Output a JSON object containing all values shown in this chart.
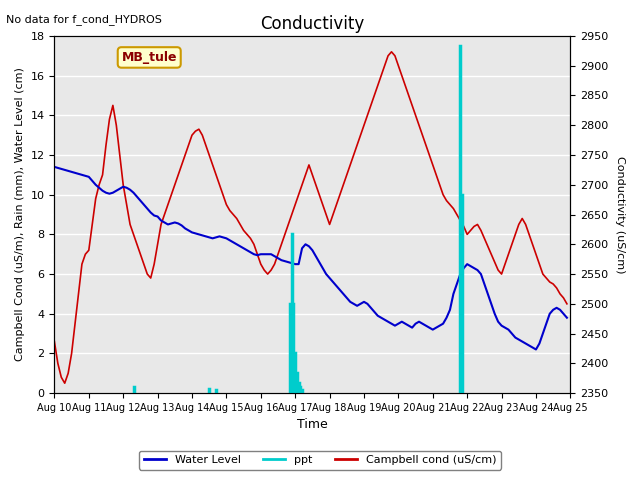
{
  "title": "Conductivity",
  "top_left_text": "No data for f_cond_HYDROS",
  "xlabel": "Time",
  "ylabel_left": "Campbell Cond (uS/m), Rain (mm), Water Level (cm)",
  "ylabel_right": "Conductivity (uS/cm)",
  "xlim": [
    0,
    15
  ],
  "ylim_left": [
    0,
    18
  ],
  "ylim_right": [
    2350,
    2950
  ],
  "bg_color": "#e8e8e8",
  "legend_box_label": "MB_tule",
  "legend_box_color": "#ffffcc",
  "legend_box_border": "#cc9900",
  "x_ticks": [
    0,
    1,
    2,
    3,
    4,
    5,
    6,
    7,
    8,
    9,
    10,
    11,
    12,
    13,
    14,
    15
  ],
  "x_tick_labels": [
    "Aug 10",
    "Aug 11",
    "Aug 12",
    "Aug 13",
    "Aug 14",
    "Aug 15",
    "Aug 16",
    "Aug 17",
    "Aug 18",
    "Aug 19",
    "Aug 20",
    "Aug 21",
    "Aug 22",
    "Aug 23",
    "Aug 24",
    "Aug 25"
  ],
  "water_level_color": "#0000cc",
  "ppt_color": "#00cccc",
  "campbell_color": "#cc0000",
  "water_level_x": [
    0,
    0.1,
    0.2,
    0.3,
    0.4,
    0.5,
    0.6,
    0.7,
    0.8,
    0.9,
    1.0,
    1.1,
    1.2,
    1.3,
    1.4,
    1.5,
    1.6,
    1.7,
    1.8,
    1.9,
    2.0,
    2.1,
    2.2,
    2.3,
    2.4,
    2.5,
    2.6,
    2.7,
    2.8,
    2.9,
    3.0,
    3.1,
    3.2,
    3.3,
    3.4,
    3.5,
    3.6,
    3.7,
    3.8,
    3.9,
    4.0,
    4.1,
    4.2,
    4.3,
    4.4,
    4.5,
    4.6,
    4.7,
    4.8,
    4.9,
    5.0,
    5.1,
    5.2,
    5.3,
    5.4,
    5.5,
    5.6,
    5.7,
    5.8,
    5.9,
    6.0,
    6.1,
    6.2,
    6.3,
    6.4,
    6.5,
    6.6,
    6.7,
    6.8,
    6.9,
    7.0,
    7.1,
    7.2,
    7.3,
    7.4,
    7.5,
    7.6,
    7.7,
    7.8,
    7.9,
    8.0,
    8.1,
    8.2,
    8.3,
    8.4,
    8.5,
    8.6,
    8.7,
    8.8,
    8.9,
    9.0,
    9.1,
    9.2,
    9.3,
    9.4,
    9.5,
    9.6,
    9.7,
    9.8,
    9.9,
    10.0,
    10.1,
    10.2,
    10.3,
    10.4,
    10.5,
    10.6,
    10.7,
    10.8,
    10.9,
    11.0,
    11.1,
    11.2,
    11.3,
    11.4,
    11.5,
    11.6,
    11.7,
    11.8,
    11.9,
    12.0,
    12.1,
    12.2,
    12.3,
    12.4,
    12.5,
    12.6,
    12.7,
    12.8,
    12.9,
    13.0,
    13.1,
    13.2,
    13.3,
    13.4,
    13.5,
    13.6,
    13.7,
    13.8,
    13.9,
    14.0,
    14.1,
    14.2,
    14.3,
    14.4,
    14.5,
    14.6,
    14.7,
    14.8,
    14.9
  ],
  "water_level_y": [
    11.4,
    11.35,
    11.3,
    11.25,
    11.2,
    11.15,
    11.1,
    11.05,
    11.0,
    10.95,
    10.9,
    10.7,
    10.5,
    10.35,
    10.2,
    10.1,
    10.05,
    10.1,
    10.2,
    10.3,
    10.4,
    10.35,
    10.25,
    10.1,
    9.9,
    9.7,
    9.5,
    9.3,
    9.1,
    8.95,
    8.9,
    8.7,
    8.6,
    8.5,
    8.55,
    8.6,
    8.55,
    8.45,
    8.3,
    8.2,
    8.1,
    8.05,
    8.0,
    7.95,
    7.9,
    7.85,
    7.8,
    7.85,
    7.9,
    7.85,
    7.8,
    7.7,
    7.6,
    7.5,
    7.4,
    7.3,
    7.2,
    7.1,
    7.0,
    6.95,
    7.0,
    7.0,
    7.0,
    7.0,
    6.9,
    6.8,
    6.7,
    6.65,
    6.6,
    6.55,
    6.5,
    6.5,
    7.3,
    7.5,
    7.4,
    7.2,
    6.9,
    6.6,
    6.3,
    6.0,
    5.8,
    5.6,
    5.4,
    5.2,
    5.0,
    4.8,
    4.6,
    4.5,
    4.4,
    4.5,
    4.6,
    4.5,
    4.3,
    4.1,
    3.9,
    3.8,
    3.7,
    3.6,
    3.5,
    3.4,
    3.5,
    3.6,
    3.5,
    3.4,
    3.3,
    3.5,
    3.6,
    3.5,
    3.4,
    3.3,
    3.2,
    3.3,
    3.4,
    3.5,
    3.8,
    4.2,
    5.0,
    5.5,
    6.0,
    6.3,
    6.5,
    6.4,
    6.3,
    6.2,
    6.0,
    5.5,
    5.0,
    4.5,
    4.0,
    3.6,
    3.4,
    3.3,
    3.2,
    3.0,
    2.8,
    2.7,
    2.6,
    2.5,
    2.4,
    2.3,
    2.2,
    2.5,
    3.0,
    3.5,
    4.0,
    4.2,
    4.3,
    4.2,
    4.0,
    3.8
  ],
  "ppt_x": [
    2.3,
    4.5,
    4.7,
    6.85,
    6.9,
    6.95,
    7.0,
    7.05,
    7.1,
    7.15,
    7.2,
    11.8,
    11.85
  ],
  "ppt_y": [
    0.3,
    0.2,
    0.15,
    4.5,
    8.0,
    4.5,
    2.0,
    1.0,
    0.5,
    0.3,
    0.15,
    17.5,
    10.0
  ],
  "campbell_x": [
    0,
    0.1,
    0.2,
    0.3,
    0.4,
    0.5,
    0.6,
    0.7,
    0.8,
    0.9,
    1.0,
    1.1,
    1.2,
    1.3,
    1.4,
    1.5,
    1.6,
    1.7,
    1.8,
    1.9,
    2.0,
    2.1,
    2.2,
    2.3,
    2.4,
    2.5,
    2.6,
    2.7,
    2.8,
    2.9,
    3.0,
    3.1,
    3.2,
    3.3,
    3.4,
    3.5,
    3.6,
    3.7,
    3.8,
    3.9,
    4.0,
    4.1,
    4.2,
    4.3,
    4.4,
    4.5,
    4.6,
    4.7,
    4.8,
    4.9,
    5.0,
    5.1,
    5.2,
    5.3,
    5.4,
    5.5,
    5.6,
    5.7,
    5.8,
    5.9,
    6.0,
    6.1,
    6.2,
    6.3,
    6.4,
    6.5,
    6.6,
    6.7,
    6.8,
    6.9,
    7.0,
    7.1,
    7.2,
    7.3,
    7.4,
    7.5,
    7.6,
    7.7,
    7.8,
    7.9,
    8.0,
    8.1,
    8.2,
    8.3,
    8.4,
    8.5,
    8.6,
    8.7,
    8.8,
    8.9,
    9.0,
    9.1,
    9.2,
    9.3,
    9.4,
    9.5,
    9.6,
    9.7,
    9.8,
    9.9,
    10.0,
    10.1,
    10.2,
    10.3,
    10.4,
    10.5,
    10.6,
    10.7,
    10.8,
    10.9,
    11.0,
    11.1,
    11.2,
    11.3,
    11.4,
    11.5,
    11.6,
    11.7,
    11.8,
    11.9,
    12.0,
    12.1,
    12.2,
    12.3,
    12.4,
    12.5,
    12.6,
    12.7,
    12.8,
    12.9,
    13.0,
    13.1,
    13.2,
    13.3,
    13.4,
    13.5,
    13.6,
    13.7,
    13.8,
    13.9,
    14.0,
    14.1,
    14.2,
    14.3,
    14.4,
    14.5,
    14.6,
    14.7,
    14.8,
    14.9
  ],
  "campbell_y": [
    2.6,
    1.5,
    0.8,
    0.5,
    1.0,
    2.0,
    3.5,
    5.0,
    6.5,
    7.0,
    7.2,
    8.5,
    9.8,
    10.5,
    11.0,
    12.5,
    13.8,
    14.5,
    13.5,
    12.0,
    10.5,
    9.5,
    8.5,
    8.0,
    7.5,
    7.0,
    6.5,
    6.0,
    5.8,
    6.5,
    7.5,
    8.5,
    9.0,
    9.5,
    10.0,
    10.5,
    11.0,
    11.5,
    12.0,
    12.5,
    13.0,
    13.2,
    13.3,
    13.0,
    12.5,
    12.0,
    11.5,
    11.0,
    10.5,
    10.0,
    9.5,
    9.2,
    9.0,
    8.8,
    8.5,
    8.2,
    8.0,
    7.8,
    7.5,
    7.0,
    6.5,
    6.2,
    6.0,
    6.2,
    6.5,
    7.0,
    7.5,
    8.0,
    8.5,
    9.0,
    9.5,
    10.0,
    10.5,
    11.0,
    11.5,
    11.0,
    10.5,
    10.0,
    9.5,
    9.0,
    8.5,
    9.0,
    9.5,
    10.0,
    10.5,
    11.0,
    11.5,
    12.0,
    12.5,
    13.0,
    13.5,
    14.0,
    14.5,
    15.0,
    15.5,
    16.0,
    16.5,
    17.0,
    17.2,
    17.0,
    16.5,
    16.0,
    15.5,
    15.0,
    14.5,
    14.0,
    13.5,
    13.0,
    12.5,
    12.0,
    11.5,
    11.0,
    10.5,
    10.0,
    9.7,
    9.5,
    9.3,
    9.0,
    8.7,
    8.4,
    8.0,
    8.2,
    8.4,
    8.5,
    8.2,
    7.8,
    7.4,
    7.0,
    6.6,
    6.2,
    6.0,
    6.5,
    7.0,
    7.5,
    8.0,
    8.5,
    8.8,
    8.5,
    8.0,
    7.5,
    7.0,
    6.5,
    6.0,
    5.8,
    5.6,
    5.5,
    5.3,
    5.0,
    4.8,
    4.5
  ]
}
